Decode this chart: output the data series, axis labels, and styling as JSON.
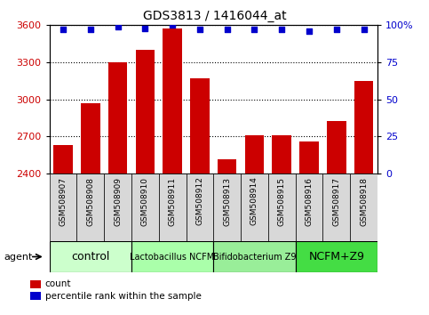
{
  "title": "GDS3813 / 1416044_at",
  "samples": [
    "GSM508907",
    "GSM508908",
    "GSM508909",
    "GSM508910",
    "GSM508911",
    "GSM508912",
    "GSM508913",
    "GSM508914",
    "GSM508915",
    "GSM508916",
    "GSM508917",
    "GSM508918"
  ],
  "counts": [
    2630,
    2970,
    3300,
    3400,
    3570,
    3170,
    2510,
    2710,
    2710,
    2660,
    2820,
    3150
  ],
  "percentile_ranks": [
    97,
    97,
    99,
    98,
    100,
    97,
    97,
    97,
    97,
    96,
    97,
    97
  ],
  "ylim_left": [
    2400,
    3600
  ],
  "ylim_right": [
    0,
    100
  ],
  "yticks_left": [
    2400,
    2700,
    3000,
    3300,
    3600
  ],
  "yticks_right": [
    0,
    25,
    50,
    75,
    100
  ],
  "bar_color": "#cc0000",
  "dot_color": "#0000cc",
  "group_defs": [
    {
      "label": "control",
      "start": 0,
      "end": 2,
      "color": "#ccffcc",
      "fontsize": 9
    },
    {
      "label": "Lactobacillus NCFM",
      "start": 3,
      "end": 5,
      "color": "#aaffaa",
      "fontsize": 7
    },
    {
      "label": "Bifidobacterium Z9",
      "start": 6,
      "end": 8,
      "color": "#99ee99",
      "fontsize": 7
    },
    {
      "label": "NCFM+Z9",
      "start": 9,
      "end": 11,
      "color": "#44dd44",
      "fontsize": 9
    }
  ],
  "legend_count_label": "count",
  "legend_pct_label": "percentile rank within the sample",
  "agent_label": "agent",
  "bar_color_left": "#cc0000",
  "dot_color_right": "#0000cc",
  "xtick_bg": "#d8d8d8",
  "title_fontsize": 10
}
